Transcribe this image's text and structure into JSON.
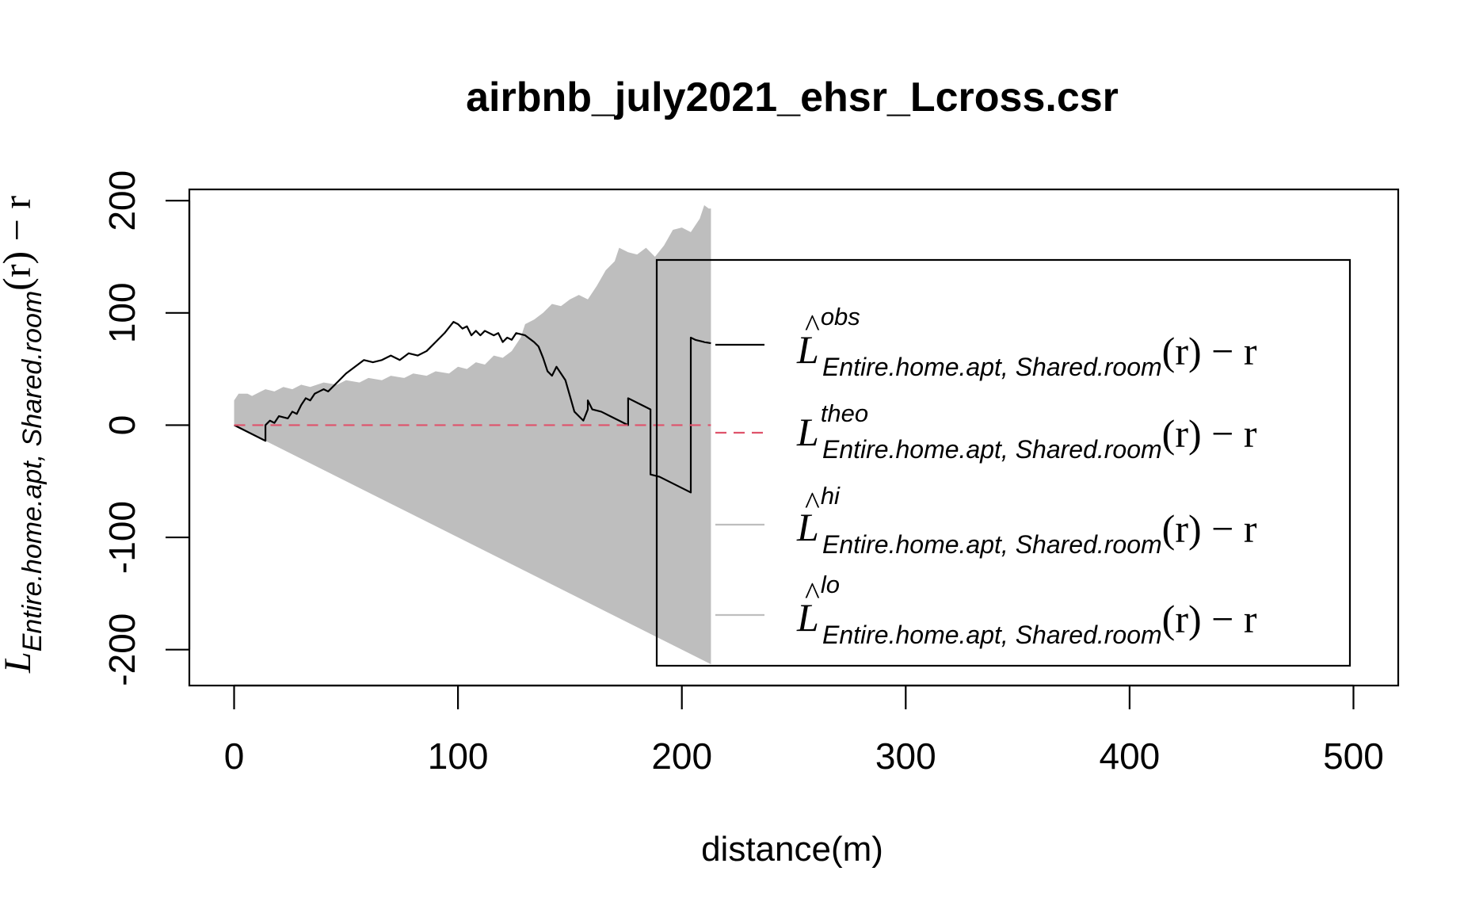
{
  "chart_data": {
    "type": "line",
    "title": "airbnb_july2021_ehsr_Lcross.csr",
    "xlabel": "distance(m)",
    "ylabel": {
      "main": "L",
      "subscript": "Entire.home.apt, Shared.room",
      "suffix": "(r) − r"
    },
    "xlim": [
      -20,
      520
    ],
    "ylim": [
      -232,
      210
    ],
    "x_ticks": [
      0,
      100,
      200,
      300,
      400,
      500
    ],
    "x_tick_labels": [
      "0",
      "100",
      "200",
      "300",
      "400",
      "500"
    ],
    "y_ticks": [
      -200,
      -100,
      0,
      100,
      200
    ],
    "y_tick_labels": [
      "-200",
      "-100",
      "0",
      "100",
      "200"
    ],
    "grid": false,
    "legend_position": "right",
    "legend": [
      {
        "symbol": "L",
        "hat": true,
        "superscript": "obs",
        "subscript": "Entire.home.apt, Shared.room",
        "suffix": "(r) − r",
        "color": "#000000",
        "dash": "solid"
      },
      {
        "symbol": "L",
        "hat": false,
        "superscript": "theo",
        "subscript": "Entire.home.apt, Shared.room",
        "suffix": "(r) − r",
        "color": "#DF536B",
        "dash": "dashed"
      },
      {
        "symbol": "L",
        "hat": true,
        "superscript": "hi",
        "subscript": "Entire.home.apt, Shared.room",
        "suffix": "(r) − r",
        "color": "#BEBEBE",
        "dash": "solid"
      },
      {
        "symbol": "L",
        "hat": true,
        "superscript": "lo",
        "subscript": "Entire.home.apt, Shared.room",
        "suffix": "(r) − r",
        "color": "#BEBEBE",
        "dash": "solid"
      }
    ],
    "envelope": {
      "color": "#BEBEBE",
      "hi": [
        [
          0,
          22
        ],
        [
          2,
          28
        ],
        [
          6,
          28
        ],
        [
          8,
          26
        ],
        [
          12,
          30
        ],
        [
          14,
          32
        ],
        [
          18,
          30
        ],
        [
          22,
          34
        ],
        [
          26,
          32
        ],
        [
          30,
          36
        ],
        [
          34,
          34
        ],
        [
          40,
          38
        ],
        [
          46,
          36
        ],
        [
          50,
          40
        ],
        [
          56,
          38
        ],
        [
          60,
          42
        ],
        [
          66,
          40
        ],
        [
          70,
          44
        ],
        [
          76,
          42
        ],
        [
          80,
          46
        ],
        [
          86,
          44
        ],
        [
          90,
          48
        ],
        [
          96,
          46
        ],
        [
          100,
          52
        ],
        [
          104,
          50
        ],
        [
          108,
          56
        ],
        [
          112,
          54
        ],
        [
          116,
          62
        ],
        [
          120,
          60
        ],
        [
          124,
          66
        ],
        [
          128,
          78
        ],
        [
          130,
          90
        ],
        [
          134,
          94
        ],
        [
          138,
          100
        ],
        [
          142,
          108
        ],
        [
          146,
          106
        ],
        [
          150,
          112
        ],
        [
          154,
          116
        ],
        [
          158,
          112
        ],
        [
          162,
          124
        ],
        [
          166,
          138
        ],
        [
          170,
          146
        ],
        [
          172,
          158
        ],
        [
          176,
          154
        ],
        [
          180,
          152
        ],
        [
          184,
          158
        ],
        [
          188,
          150
        ],
        [
          192,
          160
        ],
        [
          196,
          174
        ],
        [
          200,
          176
        ],
        [
          204,
          172
        ],
        [
          208,
          184
        ],
        [
          210,
          196
        ],
        [
          212,
          193
        ],
        [
          213,
          193
        ]
      ],
      "lo": [
        [
          0,
          0
        ],
        [
          213,
          -213
        ]
      ]
    },
    "series": [
      {
        "name": "obs",
        "color": "#000000",
        "dash": "solid",
        "points": [
          [
            0,
            0
          ],
          [
            14,
            -14
          ],
          [
            14,
            0
          ],
          [
            16,
            4
          ],
          [
            18,
            2
          ],
          [
            20,
            8
          ],
          [
            24,
            6
          ],
          [
            26,
            12
          ],
          [
            28,
            10
          ],
          [
            30,
            18
          ],
          [
            32,
            24
          ],
          [
            34,
            22
          ],
          [
            36,
            28
          ],
          [
            38,
            30
          ],
          [
            40,
            32
          ],
          [
            42,
            30
          ],
          [
            46,
            38
          ],
          [
            50,
            46
          ],
          [
            54,
            52
          ],
          [
            58,
            58
          ],
          [
            62,
            56
          ],
          [
            66,
            58
          ],
          [
            70,
            62
          ],
          [
            74,
            58
          ],
          [
            78,
            64
          ],
          [
            82,
            62
          ],
          [
            86,
            66
          ],
          [
            90,
            74
          ],
          [
            94,
            82
          ],
          [
            98,
            92
          ],
          [
            100,
            90
          ],
          [
            102,
            86
          ],
          [
            104,
            88
          ],
          [
            106,
            80
          ],
          [
            108,
            84
          ],
          [
            110,
            80
          ],
          [
            112,
            84
          ],
          [
            116,
            80
          ],
          [
            118,
            82
          ],
          [
            120,
            74
          ],
          [
            122,
            78
          ],
          [
            124,
            76
          ],
          [
            126,
            82
          ],
          [
            130,
            80
          ],
          [
            134,
            74
          ],
          [
            136,
            70
          ],
          [
            138,
            60
          ],
          [
            140,
            48
          ],
          [
            142,
            44
          ],
          [
            144,
            52
          ],
          [
            146,
            46
          ],
          [
            148,
            40
          ],
          [
            150,
            26
          ],
          [
            152,
            12
          ],
          [
            154,
            8
          ],
          [
            156,
            4
          ],
          [
            158,
            14
          ],
          [
            158,
            22
          ],
          [
            160,
            14
          ],
          [
            164,
            12
          ],
          [
            168,
            8
          ],
          [
            172,
            4
          ],
          [
            174,
            2
          ],
          [
            176,
            0
          ],
          [
            176,
            24
          ],
          [
            180,
            20
          ],
          [
            184,
            16
          ],
          [
            186,
            14
          ],
          [
            186,
            -44
          ],
          [
            190,
            -46
          ],
          [
            196,
            -52
          ],
          [
            202,
            -58
          ],
          [
            204,
            -60
          ],
          [
            204,
            78
          ],
          [
            206,
            76
          ],
          [
            210,
            74
          ],
          [
            213,
            73
          ]
        ]
      },
      {
        "name": "theo",
        "color": "#DF536B",
        "dash": "dashed",
        "points": [
          [
            0,
            0
          ],
          [
            213,
            0
          ]
        ]
      }
    ]
  }
}
